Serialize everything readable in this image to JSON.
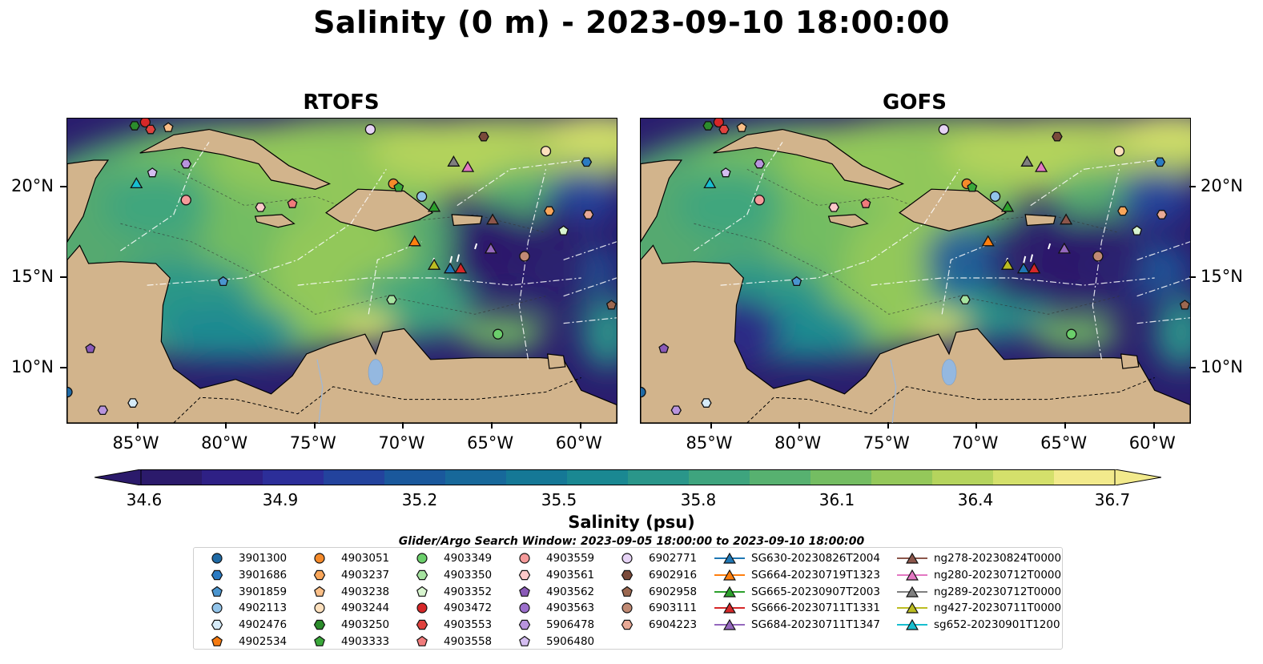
{
  "title": "Salinity (0 m) - 2023-09-10 18:00:00",
  "panels": [
    {
      "title": "RTOFS"
    },
    {
      "title": "GOFS"
    }
  ],
  "axes": {
    "lon_ticks": [
      "85°W",
      "80°W",
      "75°W",
      "70°W",
      "65°W",
      "60°W"
    ],
    "lat_ticks": [
      "20°N",
      "15°N",
      "10°N"
    ],
    "lon_range": [
      -89,
      -58
    ],
    "lat_range": [
      7,
      23.8
    ]
  },
  "colorbar": {
    "label": "Salinity (psu)",
    "ticks": [
      "34.6",
      "34.9",
      "35.2",
      "35.5",
      "35.8",
      "36.1",
      "36.4",
      "36.7"
    ],
    "colors": [
      "#2b1a6b",
      "#2e2085",
      "#2c2e99",
      "#23439d",
      "#1a589c",
      "#17689a",
      "#157896",
      "#1a8892",
      "#2a968a",
      "#3ea47e",
      "#57b170",
      "#74bd62",
      "#94c85a",
      "#b5d45d",
      "#d4e06b",
      "#f2ea8c"
    ]
  },
  "legend": {
    "title": "Glider/Argo Search Window: 2023-09-05 18:00:00 to 2023-09-10 18:00:00",
    "columns": [
      [
        {
          "label": "3901300",
          "marker": "circle",
          "color": "#1f6aa5"
        },
        {
          "label": "3901686",
          "marker": "hexagon",
          "color": "#2b7bc2"
        },
        {
          "label": "3901859",
          "marker": "pentagon",
          "color": "#4a95cf"
        },
        {
          "label": "4902113",
          "marker": "circle",
          "color": "#92c4ea"
        },
        {
          "label": "4902476",
          "marker": "hexagon",
          "color": "#d6ebf8"
        },
        {
          "label": "4902534",
          "marker": "pentagon",
          "color": "#f57a10"
        }
      ],
      [
        {
          "label": "4903051",
          "marker": "circle",
          "color": "#f58a2a"
        },
        {
          "label": "4903237",
          "marker": "hexagon",
          "color": "#f9a65a"
        },
        {
          "label": "4903238",
          "marker": "pentagon",
          "color": "#fbbf87"
        },
        {
          "label": "4903244",
          "marker": "circle",
          "color": "#fde0bd"
        },
        {
          "label": "4903250",
          "marker": "hexagon",
          "color": "#2c8c2c"
        },
        {
          "label": "4903333",
          "marker": "pentagon",
          "color": "#3aa83a"
        }
      ],
      [
        {
          "label": "4903349",
          "marker": "circle",
          "color": "#6bcf6b"
        },
        {
          "label": "4903350",
          "marker": "hexagon",
          "color": "#a6e3a0"
        },
        {
          "label": "4903352",
          "marker": "pentagon",
          "color": "#d8f5cf"
        },
        {
          "label": "4903472",
          "marker": "circle",
          "color": "#d62728"
        },
        {
          "label": "4903553",
          "marker": "hexagon",
          "color": "#e0423e"
        },
        {
          "label": "4903558",
          "marker": "pentagon",
          "color": "#f07b7b"
        }
      ],
      [
        {
          "label": "4903559",
          "marker": "circle",
          "color": "#f59a9a"
        },
        {
          "label": "4903561",
          "marker": "hexagon",
          "color": "#fcc9c9"
        },
        {
          "label": "4903562",
          "marker": "pentagon",
          "color": "#8a5ab8"
        },
        {
          "label": "4903563",
          "marker": "circle",
          "color": "#9c6fcc"
        },
        {
          "label": "5906478",
          "marker": "hexagon",
          "color": "#b894dd"
        },
        {
          "label": "5906480",
          "marker": "pentagon",
          "color": "#d4bdf0"
        }
      ],
      [
        {
          "label": "6902771",
          "marker": "circle",
          "color": "#e6d3f5"
        },
        {
          "label": "6902916",
          "marker": "hexagon",
          "color": "#7a4a3a"
        },
        {
          "label": "6902958",
          "marker": "pentagon",
          "color": "#9c6850"
        },
        {
          "label": "6903111",
          "marker": "circle",
          "color": "#c08a74"
        },
        {
          "label": "6904223",
          "marker": "hexagon",
          "color": "#e8a996"
        }
      ],
      [
        {
          "label": "SG630-20230826T2004",
          "marker": "triangle",
          "color": "#1f77b4"
        },
        {
          "label": "SG664-20230719T1323",
          "marker": "triangle",
          "color": "#ff7f0e"
        },
        {
          "label": "SG665-20230907T2003",
          "marker": "triangle",
          "color": "#2ca02c"
        },
        {
          "label": "SG666-20230711T1331",
          "marker": "triangle",
          "color": "#d62728"
        },
        {
          "label": "SG684-20230711T1347",
          "marker": "triangle",
          "color": "#9467bd"
        }
      ],
      [
        {
          "label": "ng278-20230824T0000",
          "marker": "triangle",
          "color": "#8c564b"
        },
        {
          "label": "ng280-20230712T0000",
          "marker": "triangle",
          "color": "#e377c2"
        },
        {
          "label": "ng289-20230712T0000",
          "marker": "triangle",
          "color": "#7f7f7f"
        },
        {
          "label": "ng427-20230711T0000",
          "marker": "triangle",
          "color": "#bcbd22"
        },
        {
          "label": "sg652-20230901T1200",
          "marker": "triangle",
          "color": "#17becf"
        }
      ]
    ]
  },
  "observations": [
    {
      "id": "4903250",
      "lon": -85.2,
      "lat": 23.4
    },
    {
      "id": "4903472",
      "lon": -84.6,
      "lat": 23.6
    },
    {
      "id": "4903553",
      "lon": -84.3,
      "lat": 23.2
    },
    {
      "id": "4903238",
      "lon": -83.3,
      "lat": 23.3
    },
    {
      "id": "6902771",
      "lon": -71.9,
      "lat": 23.2
    },
    {
      "id": "6902916",
      "lon": -65.5,
      "lat": 22.8
    },
    {
      "id": "4903244",
      "lon": -62.0,
      "lat": 22.0
    },
    {
      "id": "3901686",
      "lon": -59.7,
      "lat": 21.4
    },
    {
      "id": "5906478",
      "lon": -82.3,
      "lat": 21.3
    },
    {
      "id": "5906480",
      "lon": -84.2,
      "lat": 20.8
    },
    {
      "id": "4903559",
      "lon": -82.3,
      "lat": 19.3
    },
    {
      "id": "4903561",
      "lon": -78.1,
      "lat": 18.9
    },
    {
      "id": "4903558",
      "lon": -76.3,
      "lat": 19.1
    },
    {
      "id": "4903051",
      "lon": -70.6,
      "lat": 20.2
    },
    {
      "id": "4903333",
      "lon": -70.3,
      "lat": 20.0
    },
    {
      "id": "4902113",
      "lon": -69.0,
      "lat": 19.5
    },
    {
      "id": "4903237",
      "lon": -61.8,
      "lat": 18.7
    },
    {
      "id": "6904223",
      "lon": -59.6,
      "lat": 18.5
    },
    {
      "id": "4903352",
      "lon": -61.0,
      "lat": 17.6
    },
    {
      "id": "6903111",
      "lon": -63.2,
      "lat": 16.2
    },
    {
      "id": "3901859",
      "lon": -80.2,
      "lat": 14.8
    },
    {
      "id": "4903350",
      "lon": -70.7,
      "lat": 13.8
    },
    {
      "id": "4903349",
      "lon": -64.7,
      "lat": 11.9
    },
    {
      "id": "4902476",
      "lon": -85.3,
      "lat": 8.1
    },
    {
      "id": "5906478",
      "lon": -87.0,
      "lat": 7.7
    },
    {
      "id": "3901300",
      "lon": -89.0,
      "lat": 8.7
    },
    {
      "id": "6902958",
      "lon": -58.3,
      "lat": 13.5
    },
    {
      "id": "4903562",
      "lon": -87.7,
      "lat": 11.1
    }
  ],
  "gliders": [
    {
      "id": "sg652-20230901T1200",
      "lon": -85.1,
      "lat": 20.2
    },
    {
      "id": "ng289-20230712T0000",
      "lon": -67.2,
      "lat": 21.4
    },
    {
      "id": "ng280-20230712T0000",
      "lon": -66.4,
      "lat": 21.1
    },
    {
      "id": "SG665-20230907T2003",
      "lon": -68.3,
      "lat": 18.9
    },
    {
      "id": "ng278-20230824T0000",
      "lon": -65.0,
      "lat": 18.2
    },
    {
      "id": "SG664-20230719T1323",
      "lon": -69.4,
      "lat": 17.0
    },
    {
      "id": "SG684-20230711T1347",
      "lon": -65.1,
      "lat": 16.6
    },
    {
      "id": "ng427-20230711T0000",
      "lon": -68.3,
      "lat": 15.7
    },
    {
      "id": "SG630-20230826T2004",
      "lon": -67.4,
      "lat": 15.5
    },
    {
      "id": "SG666-20230711T1331",
      "lon": -66.8,
      "lat": 15.5
    }
  ]
}
